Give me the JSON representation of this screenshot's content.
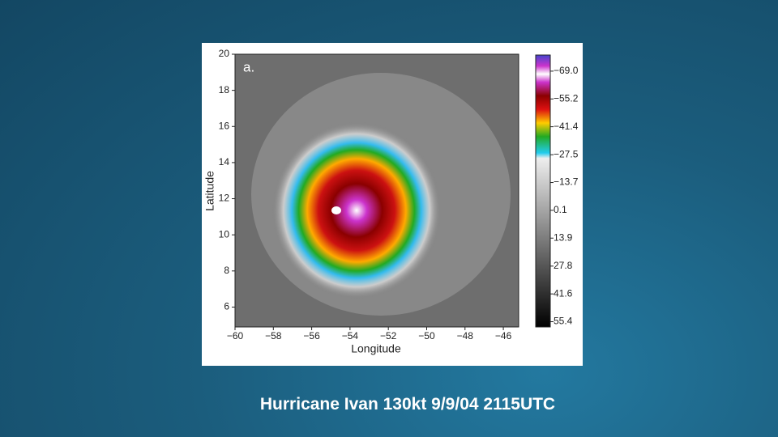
{
  "slide": {
    "caption": "Hurricane Ivan 130kt  9/9/04 2115UTC"
  },
  "figure": {
    "panel_label": "a.",
    "xlabel": "Longitude",
    "ylabel": "Latitude",
    "xlim": [
      -60,
      -45.2
    ],
    "ylim": [
      4.9,
      20
    ],
    "xticks": [
      {
        "value": -60,
        "label": "−60"
      },
      {
        "value": -58,
        "label": "−58"
      },
      {
        "value": -56,
        "label": "−56"
      },
      {
        "value": -54,
        "label": "−54"
      },
      {
        "value": -52,
        "label": "−52"
      },
      {
        "value": -50,
        "label": "−50"
      },
      {
        "value": -48,
        "label": "−48"
      },
      {
        "value": -46,
        "label": "−46"
      }
    ],
    "yticks": [
      6,
      8,
      10,
      12,
      14,
      16,
      18,
      20
    ],
    "colorbar": {
      "lim": [
        -77,
        58
      ],
      "ticks": [
        {
          "value": -69,
          "label": "−69.0"
        },
        {
          "value": -55.2,
          "label": "−55.2"
        },
        {
          "value": -41.4,
          "label": "−41.4"
        },
        {
          "value": -27.5,
          "label": "−27.5"
        },
        {
          "value": -13.7,
          "label": "−13.7"
        },
        0.1,
        13.9,
        27.8,
        41.6,
        55.4
      ]
    }
  }
}
